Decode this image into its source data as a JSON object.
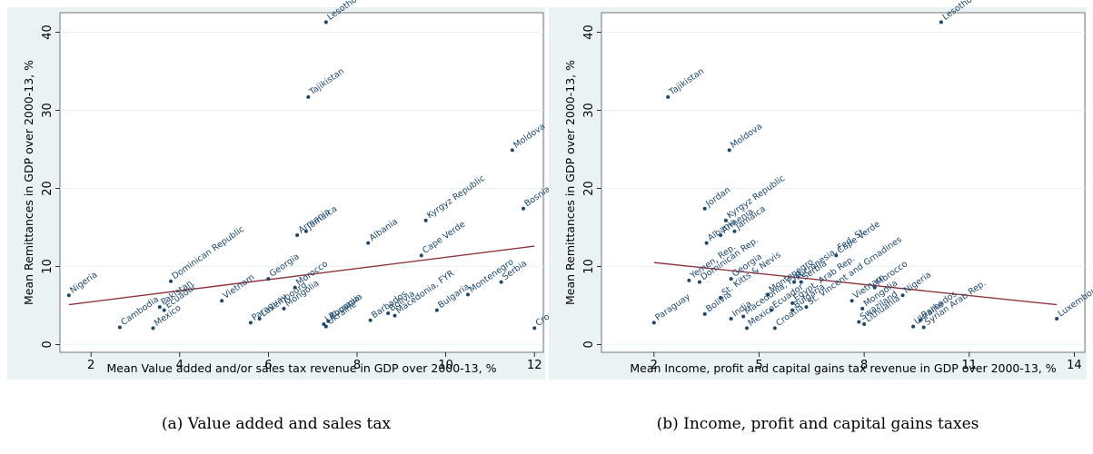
{
  "chart_data": [
    {
      "type": "scatter",
      "title": "",
      "xlabel": "Mean Value added and/or sales tax revenue in GDP over 2000-13, %",
      "ylabel": "Mean Remittances in GDP over 2000-13, %",
      "caption": "(a) Value added and sales tax",
      "xlim": [
        1.3,
        12.2
      ],
      "ylim": [
        -1,
        42.5
      ],
      "xticks": [
        2,
        4,
        6,
        8,
        10,
        12
      ],
      "yticks": [
        0,
        10,
        20,
        30,
        40
      ],
      "grid": "horizontal",
      "legend": "none",
      "colors": {
        "points": "#1a476f",
        "fit": "#90353b",
        "panel": "#eaf2f3",
        "plot": "#ffffff"
      },
      "fit_line": {
        "x": [
          1.5,
          12
        ],
        "y": [
          5.1,
          12.6
        ]
      },
      "points": [
        {
          "label": "Nigeria",
          "x": 1.5,
          "y": 6.3
        },
        {
          "label": "Cambodia",
          "x": 2.65,
          "y": 2.2
        },
        {
          "label": "Mexico",
          "x": 3.4,
          "y": 2.1
        },
        {
          "label": "Pakistan",
          "x": 3.55,
          "y": 4.8
        },
        {
          "label": "Ecuador",
          "x": 3.65,
          "y": 4.4
        },
        {
          "label": "Dominican Republic",
          "x": 3.8,
          "y": 8.1
        },
        {
          "label": "Vietnam",
          "x": 4.95,
          "y": 5.6
        },
        {
          "label": "Paraguay",
          "x": 5.6,
          "y": 2.8
        },
        {
          "label": "Luxembourg",
          "x": 5.8,
          "y": 3.3
        },
        {
          "label": "Georgia",
          "x": 6.0,
          "y": 8.4
        },
        {
          "label": "Mongolia",
          "x": 6.35,
          "y": 4.6
        },
        {
          "label": "Morocco",
          "x": 6.6,
          "y": 7.3
        },
        {
          "label": "Armenia",
          "x": 6.65,
          "y": 14.0
        },
        {
          "label": "Jamaica",
          "x": 6.85,
          "y": 14.5
        },
        {
          "label": "Tajikistan",
          "x": 6.9,
          "y": 31.7
        },
        {
          "label": "Lesotho",
          "x": 7.3,
          "y": 41.3
        },
        {
          "label": "Lithuania",
          "x": 7.25,
          "y": 2.6
        },
        {
          "label": "Romania",
          "x": 7.35,
          "y": 3.0
        },
        {
          "label": "Ukraine",
          "x": 7.3,
          "y": 2.3
        },
        {
          "label": "Barbados",
          "x": 8.3,
          "y": 3.1
        },
        {
          "label": "Albania",
          "x": 8.25,
          "y": 13.0
        },
        {
          "label": "Bolivia",
          "x": 8.7,
          "y": 4.0
        },
        {
          "label": "Macedonia, FYR",
          "x": 8.85,
          "y": 3.7
        },
        {
          "label": "Kyrgyz Republic",
          "x": 9.55,
          "y": 15.9
        },
        {
          "label": "Cape Verde",
          "x": 9.45,
          "y": 11.4
        },
        {
          "label": "Bulgaria",
          "x": 9.8,
          "y": 4.4
        },
        {
          "label": "Montenegro",
          "x": 10.5,
          "y": 6.4
        },
        {
          "label": "Serbia",
          "x": 11.25,
          "y": 8.0
        },
        {
          "label": "Moldova",
          "x": 11.5,
          "y": 24.9
        },
        {
          "label": "Bosnia and Herzegovina",
          "x": 11.75,
          "y": 17.4
        },
        {
          "label": "Croatia",
          "x": 12.0,
          "y": 2.1
        }
      ]
    },
    {
      "type": "scatter",
      "title": "",
      "xlabel": "Mean Income, profit and capital gains tax revenue in GDP over 2000-13, %",
      "ylabel": "Mean Remittances in GDP over 2000-13, %",
      "caption": "(b) Income, profit and capital gains taxes",
      "xlim": [
        0.5,
        14.3
      ],
      "ylim": [
        -1,
        42.5
      ],
      "xticks": [
        2,
        5,
        8,
        11,
        14
      ],
      "yticks": [
        0,
        10,
        20,
        30,
        40
      ],
      "grid": "horizontal",
      "legend": "none",
      "colors": {
        "points": "#1a476f",
        "fit": "#90353b",
        "panel": "#eaf2f3",
        "plot": "#ffffff"
      },
      "fit_line": {
        "x": [
          2,
          13.5
        ],
        "y": [
          10.5,
          5.1
        ]
      },
      "points": [
        {
          "label": "Paraguay",
          "x": 2.0,
          "y": 2.8
        },
        {
          "label": "Tajikistan",
          "x": 2.4,
          "y": 31.7
        },
        {
          "label": "Yemen, Rep.",
          "x": 3.0,
          "y": 8.2
        },
        {
          "label": "Dominican Rep.",
          "x": 3.3,
          "y": 8.0
        },
        {
          "label": "Bolivia",
          "x": 3.45,
          "y": 3.9
        },
        {
          "label": "Albania",
          "x": 3.5,
          "y": 13.0
        },
        {
          "label": "Armenia",
          "x": 3.9,
          "y": 14.0
        },
        {
          "label": "Jordan",
          "x": 3.45,
          "y": 17.4
        },
        {
          "label": "Moldova",
          "x": 4.15,
          "y": 24.9
        },
        {
          "label": "Kyrgyz Republic",
          "x": 4.05,
          "y": 15.9
        },
        {
          "label": "Jamaica",
          "x": 4.3,
          "y": 14.5
        },
        {
          "label": "Georgia",
          "x": 4.2,
          "y": 8.4
        },
        {
          "label": "St. Kitts & Nevis",
          "x": 3.9,
          "y": 6.0
        },
        {
          "label": "India",
          "x": 4.2,
          "y": 3.3
        },
        {
          "label": "Macedonia, FYR",
          "x": 4.55,
          "y": 3.6
        },
        {
          "label": "Mexico",
          "x": 4.65,
          "y": 2.1
        },
        {
          "label": "Montenegro",
          "x": 5.25,
          "y": 6.4
        },
        {
          "label": "Ecuador",
          "x": 5.35,
          "y": 4.4
        },
        {
          "label": "Croatia",
          "x": 5.45,
          "y": 2.1
        },
        {
          "label": "Micronesia, Fed. St.",
          "x": 6.0,
          "y": 8.0
        },
        {
          "label": "Serbia",
          "x": 6.2,
          "y": 8.0
        },
        {
          "label": "Egypt, Arab Rep.",
          "x": 5.95,
          "y": 5.3
        },
        {
          "label": "Bulgaria",
          "x": 5.95,
          "y": 4.4
        },
        {
          "label": "St. Vincent and Grnadines",
          "x": 6.35,
          "y": 4.8
        },
        {
          "label": "Cape Verde",
          "x": 7.2,
          "y": 11.4
        },
        {
          "label": "Vietnam",
          "x": 7.65,
          "y": 5.6
        },
        {
          "label": "Swaziland",
          "x": 7.85,
          "y": 2.9
        },
        {
          "label": "Lithuania",
          "x": 8.0,
          "y": 2.6
        },
        {
          "label": "Mongolia",
          "x": 7.95,
          "y": 4.6
        },
        {
          "label": "Morocco",
          "x": 8.3,
          "y": 7.3
        },
        {
          "label": "Nigeria",
          "x": 9.1,
          "y": 6.3
        },
        {
          "label": "Ukraine",
          "x": 9.4,
          "y": 2.3
        },
        {
          "label": "Barbados",
          "x": 9.6,
          "y": 3.1
        },
        {
          "label": "Syrian Arab Rep.",
          "x": 9.7,
          "y": 2.2
        },
        {
          "label": "Lesotho",
          "x": 10.2,
          "y": 41.3
        },
        {
          "label": "Luxembourg",
          "x": 13.5,
          "y": 3.3
        }
      ]
    }
  ]
}
